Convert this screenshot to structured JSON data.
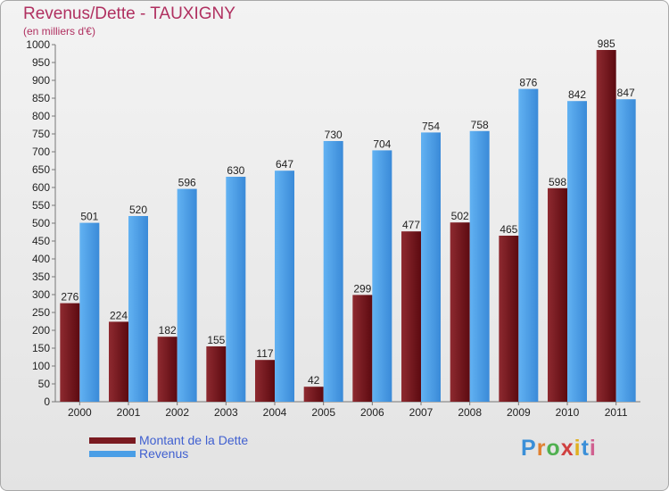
{
  "chart_data": {
    "type": "bar",
    "title": "Revenus/Dette - TAUXIGNY",
    "subtitle": "(en milliers d'€)",
    "categories": [
      "2000",
      "2001",
      "2002",
      "2003",
      "2004",
      "2005",
      "2006",
      "2007",
      "2008",
      "2009",
      "2010",
      "2011"
    ],
    "series": [
      {
        "name": "Montant de la Dette",
        "color": "#7a1a20",
        "values": [
          276,
          224,
          182,
          155,
          117,
          42,
          299,
          477,
          502,
          465,
          598,
          985
        ]
      },
      {
        "name": "Revenus",
        "color": "#4a9ee6",
        "values": [
          501,
          520,
          596,
          630,
          647,
          730,
          704,
          754,
          758,
          876,
          842,
          847
        ]
      }
    ],
    "ylim": [
      0,
      1000
    ],
    "ytick_step": 50,
    "grid": false,
    "legend": "bottom-left"
  },
  "logo_text": "Proxiti"
}
